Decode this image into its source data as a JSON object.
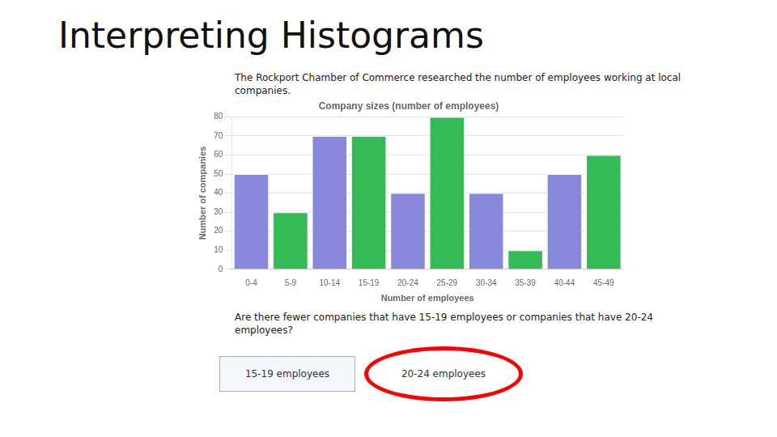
{
  "chart_data": {
    "type": "bar",
    "title": "Company sizes (number of employees)",
    "xlabel": "Number of employees",
    "ylabel": "Number of companies",
    "categories": [
      "0-4",
      "5-9",
      "10-14",
      "15-19",
      "20-24",
      "25-29",
      "30-34",
      "35-39",
      "40-44",
      "45-49"
    ],
    "values": [
      50,
      30,
      70,
      70,
      40,
      80,
      40,
      10,
      50,
      60
    ],
    "colors": [
      "#8888dd",
      "#33bb55",
      "#8888dd",
      "#33bb55",
      "#8888dd",
      "#33bb55",
      "#8888dd",
      "#33bb55",
      "#8888dd",
      "#33bb55"
    ],
    "ylim": [
      0,
      80
    ],
    "yticks": [
      0,
      10,
      20,
      30,
      40,
      50,
      60,
      70,
      80
    ],
    "grid": true,
    "annotations": [
      "Interpreting Histograms",
      "The Rockport Chamber of Commerce researched the number of employees working at local\ncompanies.",
      "Are there fewer companies that have 15-19 employees or companies that have 20-24\nemployees?",
      "15-19 employees",
      "20-24 employees"
    ]
  }
}
